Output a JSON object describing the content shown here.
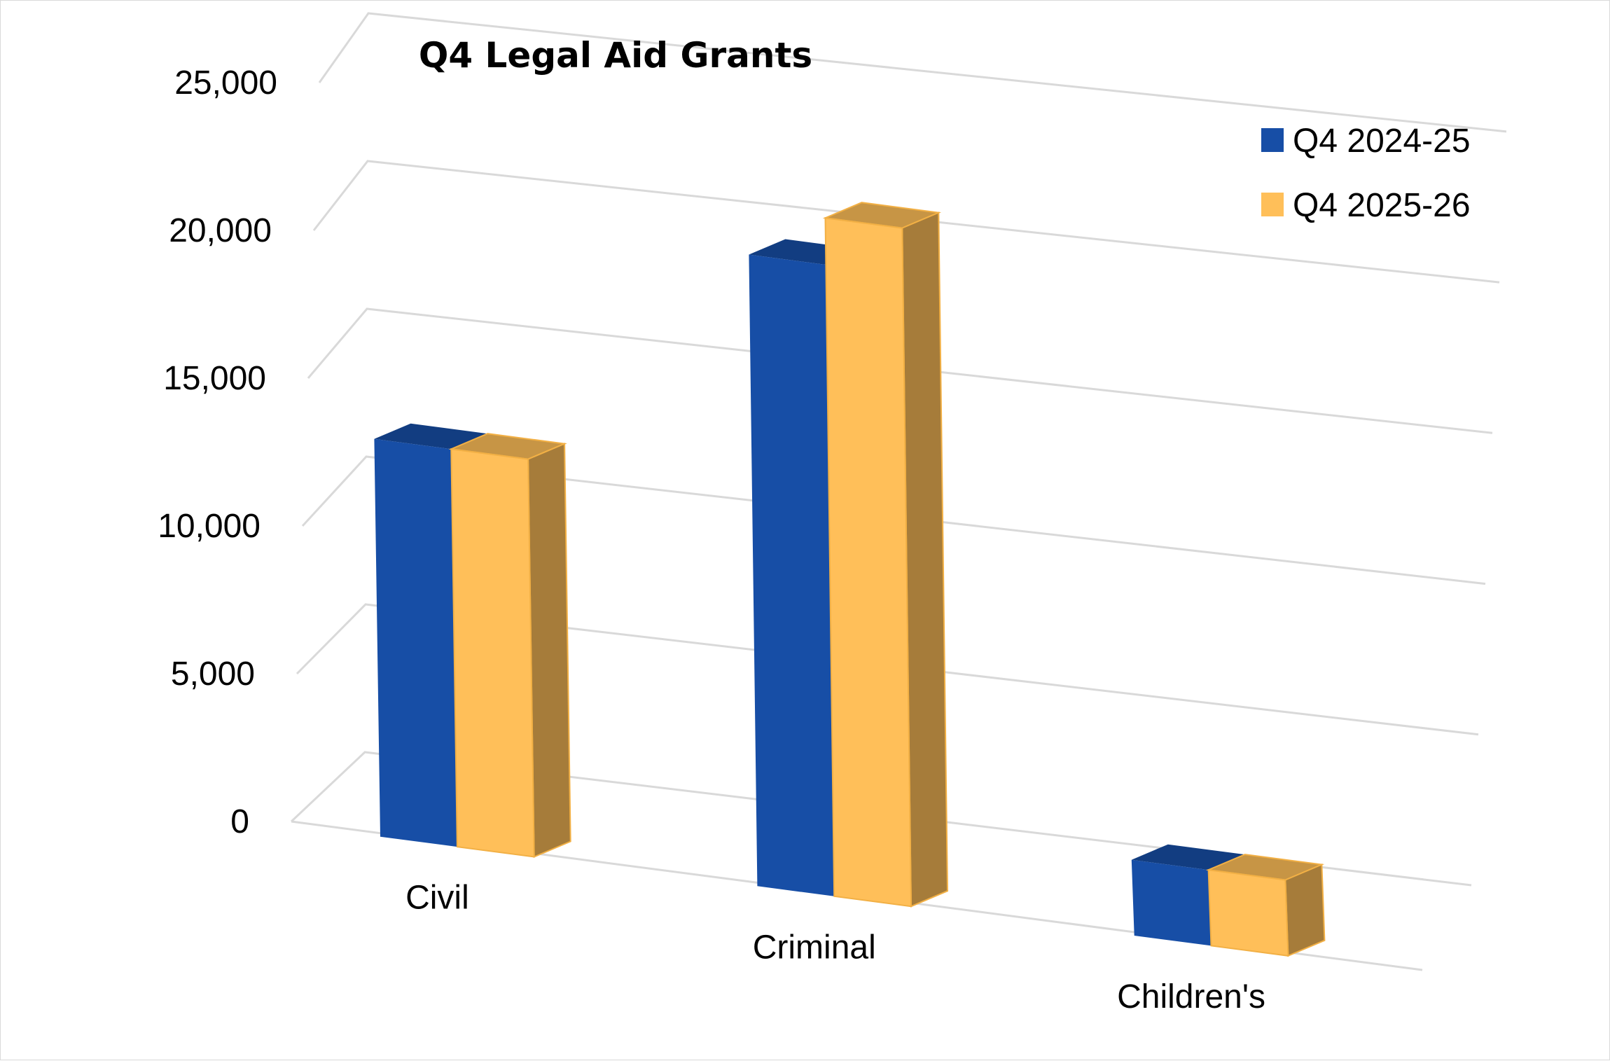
{
  "chart_data": {
    "type": "bar",
    "title": "Q4 Legal Aid Grants",
    "categories": [
      "Civil",
      "Criminal",
      "Children's"
    ],
    "series": [
      {
        "name": "Q4 2024-25",
        "values": [
          14000,
          22500,
          2300
        ],
        "color": "#174ea6"
      },
      {
        "name": "Q4 2025-26",
        "values": [
          14000,
          24200,
          2300
        ],
        "color": "#ffbf59"
      }
    ],
    "ylim": [
      0,
      25000
    ],
    "yticks": [
      "0",
      "5,000",
      "10,000",
      "15,000",
      "20,000",
      "25,000"
    ],
    "grid": true,
    "legend": "top-right",
    "style": "3d-column"
  }
}
